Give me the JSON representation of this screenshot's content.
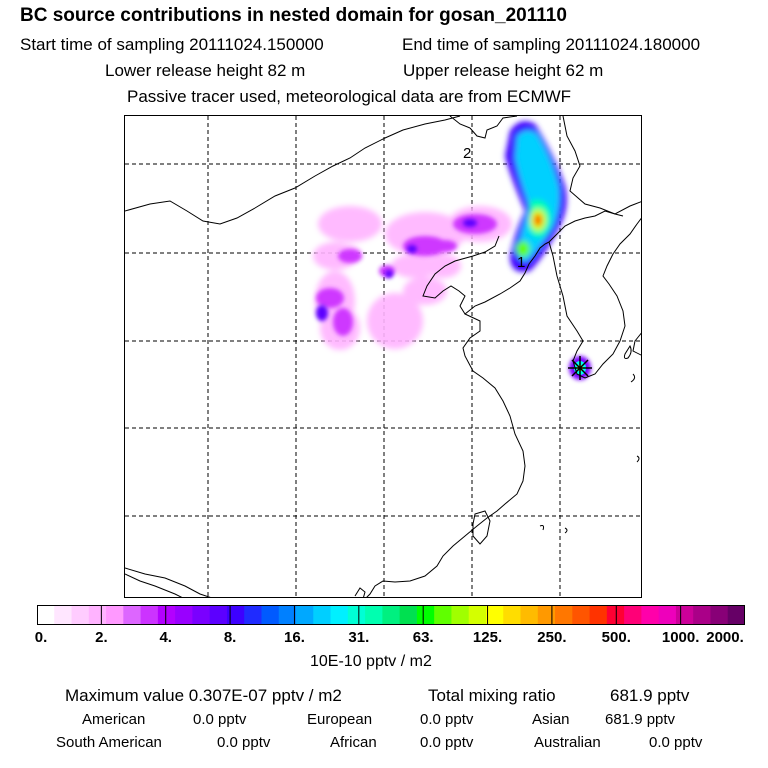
{
  "header": {
    "title": "BC  source contributions in nested domain for gosan_201110",
    "start_label": "Start time of sampling 20111024.150000",
    "end_label": "End time of sampling 20111024.180000",
    "lower_label": "Lower release height   82 m",
    "upper_label": "Upper release height   62 m",
    "info_line": "Passive tracer used, meteorological data are from ECMWF"
  },
  "map": {
    "markers": [
      "2",
      "1"
    ],
    "colors": {
      "plume_low": "#ff99ff",
      "plume_mid": "#8800ff",
      "plume_core": "#00ffee",
      "plume_peak": "#ff2200"
    }
  },
  "colorbar": {
    "ticks": [
      "0.",
      "2.",
      "4.",
      "8.",
      "16.",
      "31.",
      "63.",
      "125.",
      "250.",
      "500.",
      "1000.",
      "2000."
    ],
    "unit": "10E-10 pptv / m2",
    "colors": [
      "#ffffff",
      "#ffe6ff",
      "#ffccff",
      "#ffb3ff",
      "#ff99ff",
      "#dd66ff",
      "#cc33ff",
      "#b300ff",
      "#9900ff",
      "#7a00ff",
      "#5c00ff",
      "#3d00ff",
      "#1f2bff",
      "#005aff",
      "#0080ff",
      "#00a8ff",
      "#00cfff",
      "#00f0ff",
      "#00ffd5",
      "#00ffb0",
      "#00f080",
      "#00e050",
      "#00ff00",
      "#60ff00",
      "#a0ff00",
      "#d4ff00",
      "#ffff00",
      "#ffdd00",
      "#ffbb00",
      "#ff9900",
      "#ff7700",
      "#ff5500",
      "#ff3300",
      "#ff0033",
      "#ff0077",
      "#ff00aa",
      "#ee00bb",
      "#cc0099",
      "#aa0088",
      "#880077",
      "#660066"
    ]
  },
  "footer": {
    "max_label": "Maximum value  0.307E-07 pptv / m2",
    "total_label": "Total mixing ratio",
    "total_value": "681.9 pptv",
    "american_label": "American",
    "american_value": "0.0 pptv",
    "european_label": "European",
    "european_value": "0.0 pptv",
    "asian_label": "Asian",
    "asian_value": "681.9 pptv",
    "south_american_label": "South American",
    "south_american_value": "0.0 pptv",
    "african_label": "African",
    "african_value": "0.0 pptv",
    "australian_label": "Australian",
    "australian_value": "0.0 pptv"
  }
}
